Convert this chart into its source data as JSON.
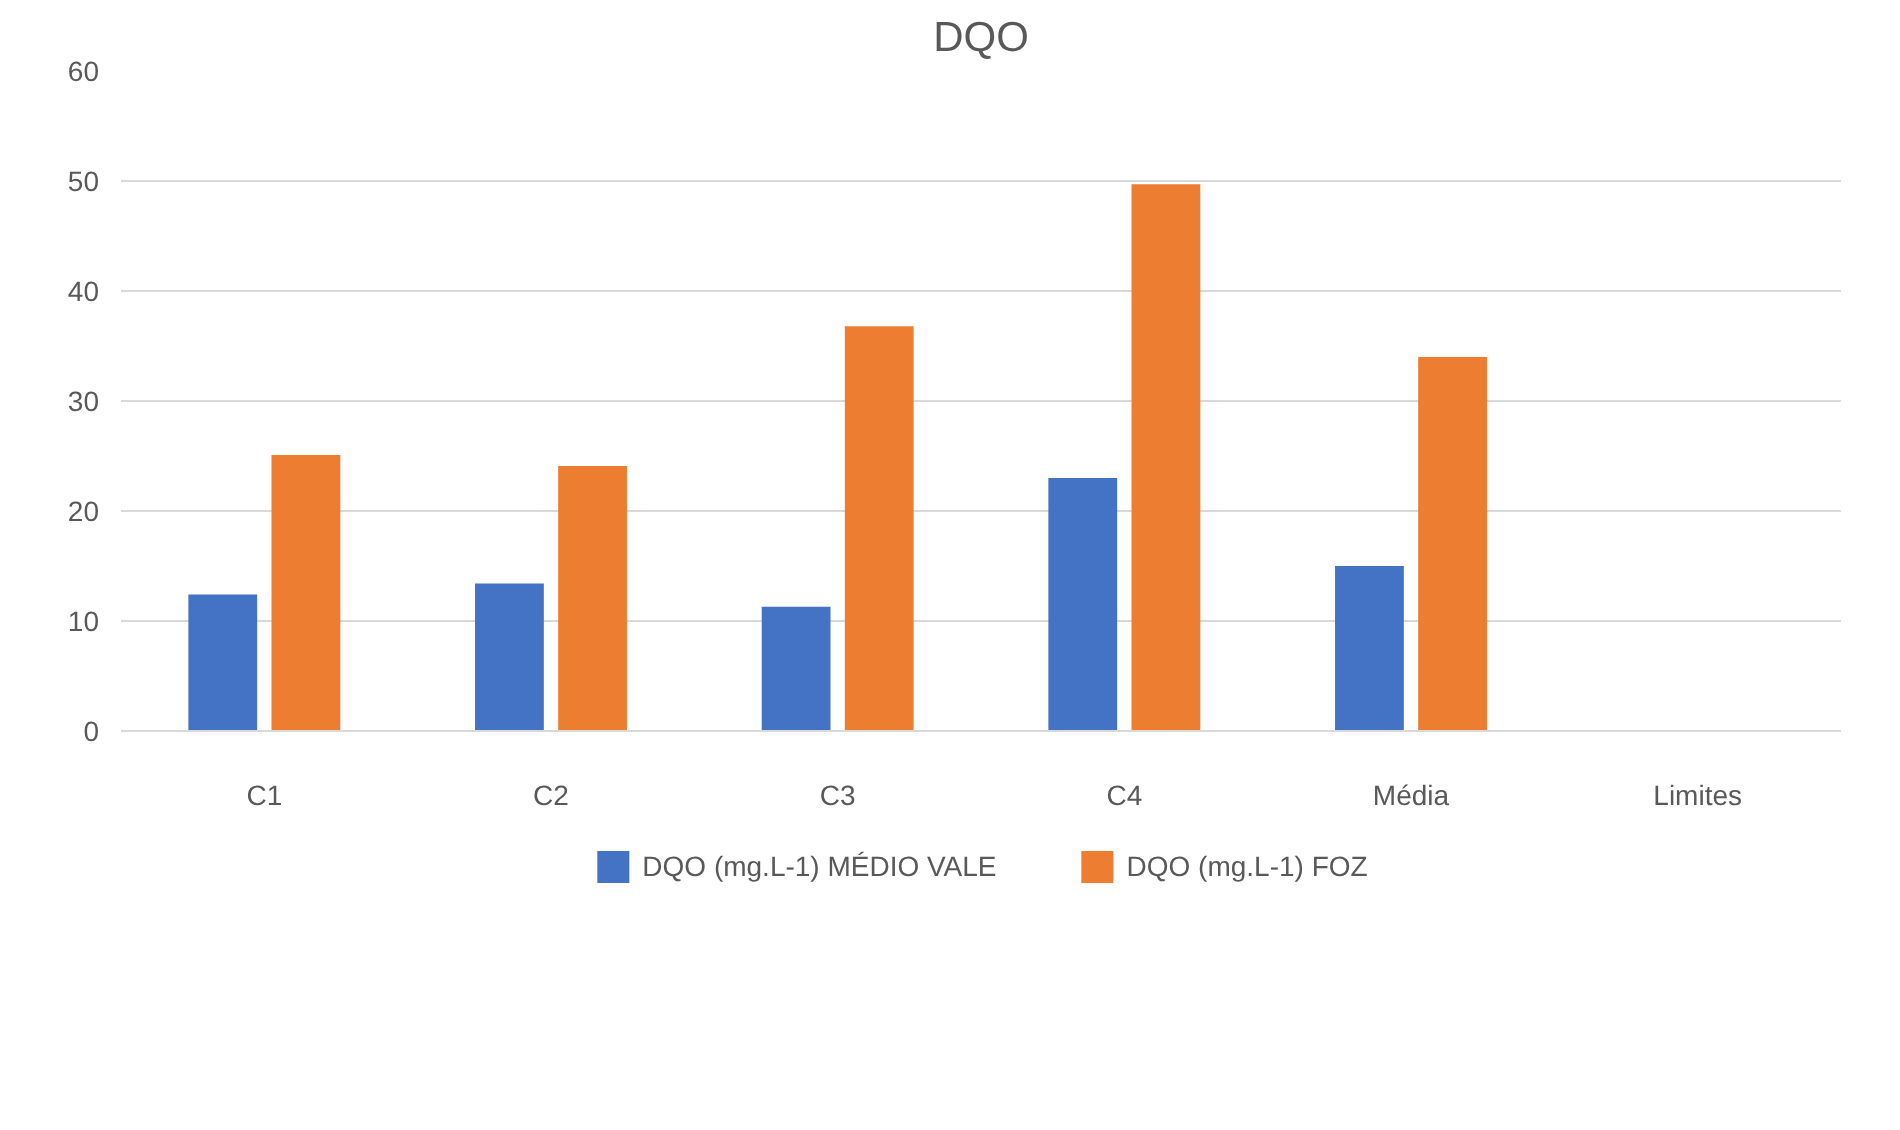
{
  "chart_data": {
    "type": "bar",
    "title": "DQO",
    "categories": [
      "C1",
      "C2",
      "C3",
      "C4",
      "Média",
      "Limites"
    ],
    "series": [
      {
        "name": "DQO (mg.L-1) MÉDIO VALE",
        "color": "#4472c4",
        "values": [
          12.4,
          13.4,
          11.3,
          23.0,
          15.0,
          null
        ]
      },
      {
        "name": "DQO (mg.L-1) FOZ",
        "color": "#ed7d31",
        "values": [
          25.1,
          24.1,
          36.8,
          49.7,
          34.0,
          null
        ]
      }
    ],
    "ylim": [
      0,
      60
    ],
    "yticks": [
      0,
      10,
      20,
      30,
      40,
      50,
      60
    ],
    "grid": "y",
    "legend": "bottom"
  }
}
